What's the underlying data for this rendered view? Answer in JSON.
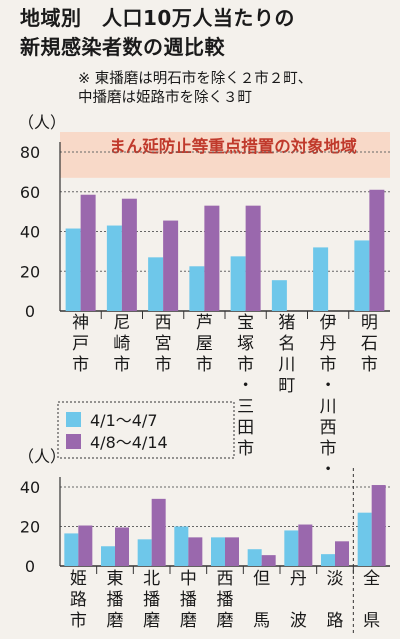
{
  "title": "地域別　人口10万人当たりの\n新規感染者数の週比較",
  "note": "※ 東播磨は明石市を除く２市２町、\n中播磨は姫路市を除く３町",
  "colors": {
    "series1": "#6ec7ea",
    "series2": "#9a68ad",
    "band": "#f8d9c8",
    "band_text": "#c0392b"
  },
  "chart_data": [
    {
      "type": "bar",
      "unit": "（人）",
      "ylim": [
        0,
        80
      ],
      "yticks": [
        "0",
        "20",
        "40",
        "60",
        "80"
      ],
      "band_label": "まん延防止等重点措置の対象地域",
      "band_range": [
        67,
        80
      ],
      "categories": [
        "神戸市",
        "尼崎市",
        "西宮市",
        "芦屋市",
        "宝塚市・三田市",
        "猪名川町",
        "伊丹市・川西市・",
        "明石市"
      ],
      "series": [
        {
          "name": "4/1～4/7",
          "values": [
            41.5,
            43,
            27,
            22.5,
            27.5,
            15.5,
            32,
            35.5
          ]
        },
        {
          "name": "4/8～4/14",
          "values": [
            58.5,
            56.5,
            45.5,
            53,
            53,
            0,
            0,
            61
          ]
        }
      ],
      "legend": [
        "4/1～4/7",
        "4/8～4/14"
      ]
    },
    {
      "type": "bar",
      "unit": "（人）",
      "ylim": [
        0,
        40
      ],
      "yticks": [
        "0",
        "20",
        "40"
      ],
      "categories": [
        "姫路市",
        "東播磨",
        "北播磨",
        "中播磨",
        "西播磨",
        "但馬",
        "丹波",
        "淡路",
        "全県"
      ],
      "series": [
        {
          "name": "4/1～4/7",
          "values": [
            16.5,
            10,
            13.5,
            20,
            14.5,
            8.5,
            18,
            6,
            27
          ]
        },
        {
          "name": "4/8～4/14",
          "values": [
            20.5,
            19.5,
            34,
            14.5,
            14.5,
            5.5,
            21,
            12.5,
            41
          ]
        }
      ]
    }
  ]
}
